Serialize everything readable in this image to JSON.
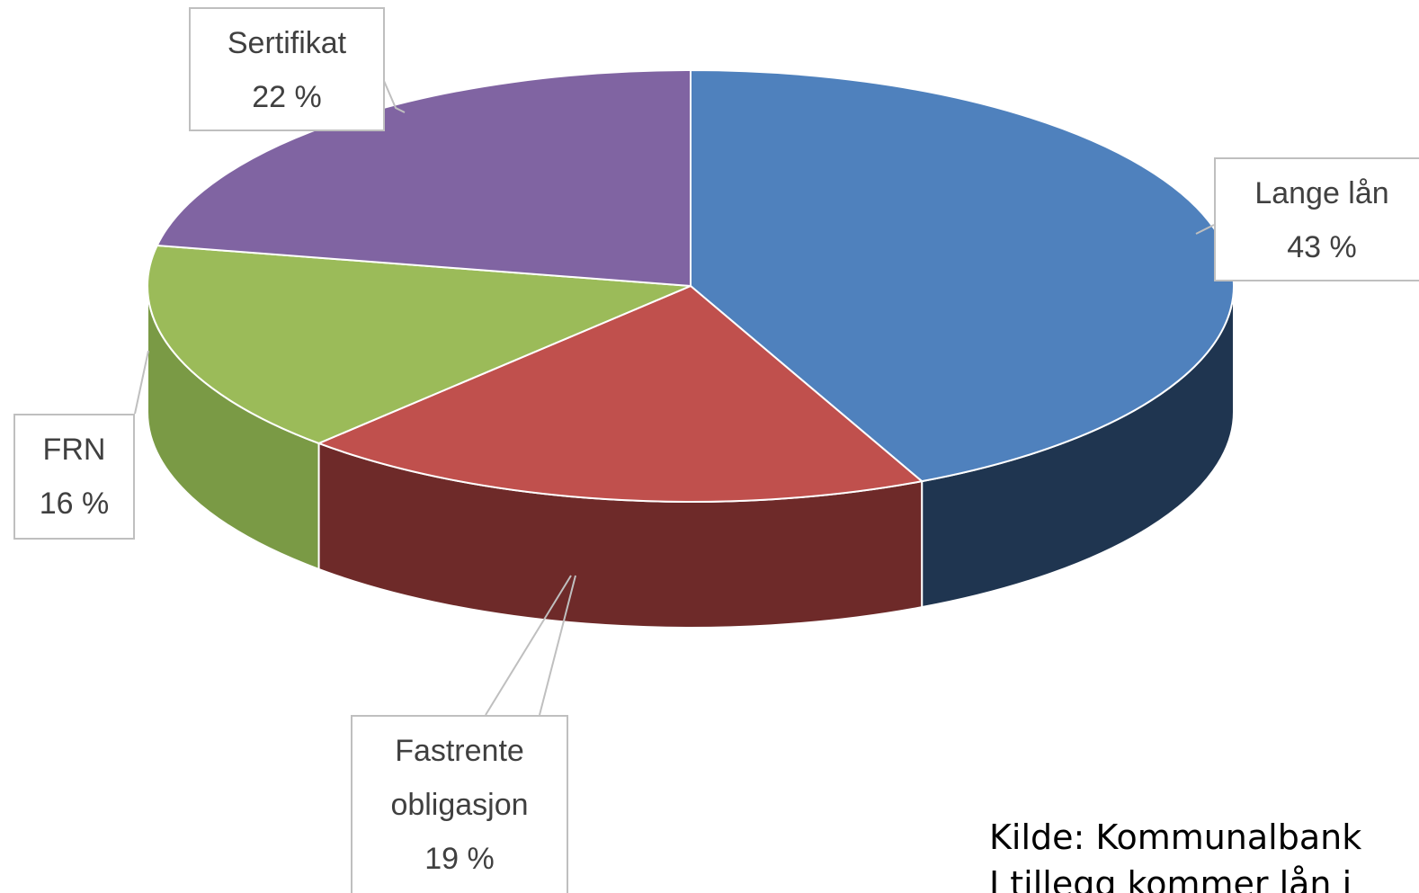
{
  "chart_data": {
    "type": "pie",
    "categories": [
      "Lange lån",
      "Fastrente obligasjon",
      "FRN",
      "Sertifikat"
    ],
    "values": [
      43,
      19,
      16,
      22
    ],
    "value_labels": [
      "43 %",
      "19 %",
      "16 %",
      "22 %"
    ],
    "colors": [
      "#4f81bd",
      "#c0504d",
      "#9bbb59",
      "#8064a2"
    ],
    "side_colors": [
      "#1f3550",
      "#6e2a29",
      "#7a9a45",
      "#5a4475"
    ],
    "note": [
      "Kilde: Kommunalbank",
      "I tillegg kommer lån i"
    ]
  }
}
